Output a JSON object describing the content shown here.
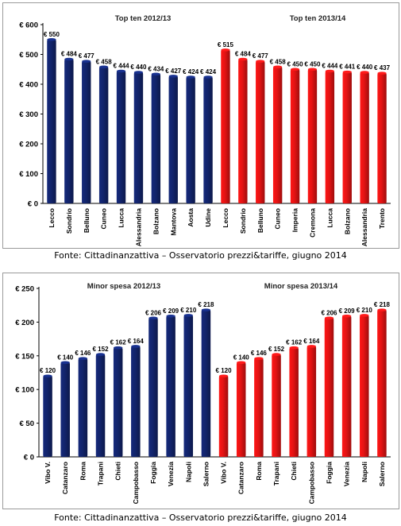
{
  "charts": [
    {
      "source": "Fonte: Cittadinanzattiva – Osservatorio prezzi&tariffe, giugno 2014"
    },
    {
      "source": "Fonte: Cittadinanzattiva – Osservatorio prezzi&tariffe, giugno 2014"
    }
  ],
  "colors": {
    "navy": "#12246b",
    "red": "#e21313",
    "axis": "#000000"
  },
  "chart_data": [
    {
      "type": "bar",
      "ylim": [
        0,
        600
      ],
      "yticks": [
        "€ 0",
        "€ 100",
        "€ 200",
        "€ 300",
        "€ 400",
        "€ 500",
        "€ 600"
      ],
      "ytick_values": [
        0,
        100,
        200,
        300,
        400,
        500,
        600
      ],
      "groups": [
        {
          "title": "Top ten 2012/13",
          "color": "#12246b",
          "categories": [
            "Lecco",
            "Sondrio",
            "Belluno",
            "Cuneo",
            "Lucca",
            "Alessandria",
            "Bolzano",
            "Mantova",
            "Aosta",
            "Udine"
          ],
          "values": [
            550,
            484,
            477,
            458,
            444,
            440,
            434,
            427,
            424,
            424
          ],
          "labels": [
            "€ 550",
            "€ 484",
            "€ 477",
            "€ 458",
            "€ 444",
            "€ 440",
            "€ 434",
            "€ 427",
            "€ 424",
            "€ 424"
          ]
        },
        {
          "title": "Top ten 2013/14",
          "color": "#e21313",
          "categories": [
            "Lecco",
            "Sondrio",
            "Belluno",
            "Cuneo",
            "Imperia",
            "Cremona",
            "Lucca",
            "Bolzano",
            "Alessandria",
            "Trento"
          ],
          "values": [
            515,
            484,
            477,
            458,
            450,
            450,
            444,
            441,
            440,
            437
          ],
          "labels": [
            "€ 515",
            "€ 484",
            "€ 477",
            "€ 458",
            "€ 450",
            "€ 450",
            "€ 444",
            "€ 441",
            "€ 440",
            "€ 437"
          ]
        }
      ]
    },
    {
      "type": "bar",
      "ylim": [
        0,
        250
      ],
      "yticks": [
        "€ 0",
        "€ 50",
        "€ 100",
        "€ 150",
        "€ 200",
        "€ 250"
      ],
      "ytick_values": [
        0,
        50,
        100,
        150,
        200,
        250
      ],
      "groups": [
        {
          "title": "Minor spesa 2012/13",
          "color": "#12246b",
          "categories": [
            "Vibo V.",
            "Catanzaro",
            "Roma",
            "Trapani",
            "Chieti",
            "Campobasso",
            "Foggia",
            "Venezia",
            "Napoli",
            "Salerno"
          ],
          "values": [
            120,
            140,
            146,
            152,
            162,
            164,
            206,
            209,
            210,
            218
          ],
          "labels": [
            "€ 120",
            "€ 140",
            "€ 146",
            "€ 152",
            "€ 162",
            "€ 164",
            "€ 206",
            "€ 209",
            "€ 210",
            "€ 218"
          ]
        },
        {
          "title": "Minor spesa 2013/14",
          "color": "#e21313",
          "categories": [
            "Vibo V.",
            "Catanzaro",
            "Roma",
            "Trapani",
            "Chieti",
            "Campobasso",
            "Foggia",
            "Venezia",
            "Napoli",
            "Salerno"
          ],
          "values": [
            120,
            140,
            146,
            152,
            162,
            164,
            206,
            209,
            210,
            218
          ],
          "labels": [
            "€ 120",
            "€ 140",
            "€ 146",
            "€ 152",
            "€ 162",
            "€ 164",
            "€ 206",
            "€ 209",
            "€ 210",
            "€ 218"
          ]
        }
      ]
    }
  ]
}
